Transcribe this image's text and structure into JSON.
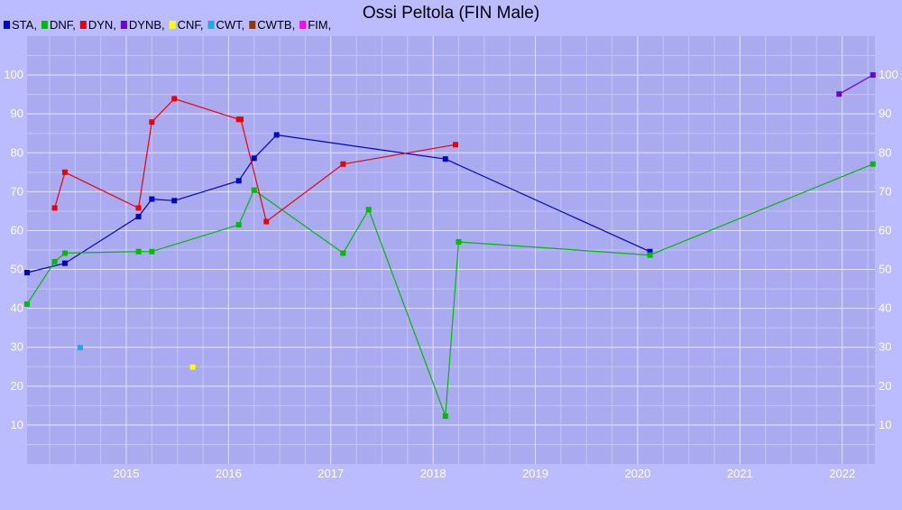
{
  "chart_data": {
    "type": "line",
    "title": "Ossi Peltola (FIN Male)",
    "xlabel": "",
    "ylabel": "",
    "xlim": [
      2014.03,
      2022.32
    ],
    "ylim": [
      0,
      110
    ],
    "y_ticks": [
      10,
      20,
      30,
      40,
      50,
      60,
      70,
      80,
      90,
      100
    ],
    "x_ticks": [
      "2015",
      "2016",
      "2017",
      "2018",
      "2019",
      "2020",
      "2021",
      "2022"
    ],
    "grid": true,
    "legend_position": "top-left",
    "legend": [
      {
        "label": "STA,",
        "color": "#0000cc"
      },
      {
        "label": "DNF,",
        "color": "#00bb00"
      },
      {
        "label": "DYN,",
        "color": "#ee0000"
      },
      {
        "label": "DYNB,",
        "color": "#6600dd"
      },
      {
        "label": "CNF,",
        "color": "#ffff00"
      },
      {
        "label": "CWT,",
        "color": "#22aadd"
      },
      {
        "label": "CWTB,",
        "color": "#993300"
      },
      {
        "label": "FIM,",
        "color": "#ff00ff"
      }
    ],
    "series": [
      {
        "name": "STA",
        "color": "#0000cc",
        "points": [
          [
            2014.03,
            49.2
          ],
          [
            2014.4,
            51.6
          ],
          [
            2015.12,
            63.6
          ],
          [
            2015.25,
            68.1
          ],
          [
            2015.47,
            67.7
          ],
          [
            2016.1,
            72.8
          ],
          [
            2016.25,
            78.6
          ],
          [
            2016.47,
            84.6
          ],
          [
            2018.12,
            78.4
          ],
          [
            2020.12,
            54.6
          ]
        ]
      },
      {
        "name": "DNF",
        "color": "#00bb00",
        "points": [
          [
            2014.03,
            41.1
          ],
          [
            2014.3,
            52.0
          ],
          [
            2014.4,
            54.2
          ],
          [
            2015.12,
            54.6
          ],
          [
            2015.25,
            54.6
          ],
          [
            2016.1,
            61.5
          ],
          [
            2016.25,
            70.4
          ],
          [
            2017.12,
            54.2
          ],
          [
            2017.37,
            65.4
          ],
          [
            2018.12,
            12.3
          ],
          [
            2018.25,
            57.1
          ],
          [
            2020.12,
            53.7
          ],
          [
            2022.3,
            77.1
          ]
        ]
      },
      {
        "name": "DYN",
        "color": "#ee0000",
        "points": [
          [
            2014.3,
            65.8
          ],
          [
            2014.4,
            75.0
          ],
          [
            2015.12,
            65.8
          ],
          [
            2015.25,
            87.9
          ],
          [
            2015.47,
            93.9
          ],
          [
            2016.1,
            88.6
          ],
          [
            2016.12,
            88.6
          ],
          [
            2016.37,
            62.3
          ],
          [
            2017.12,
            77.1
          ],
          [
            2018.22,
            82.1
          ]
        ]
      },
      {
        "name": "DYNB",
        "color": "#6600dd",
        "points": [
          [
            2021.97,
            95.1
          ],
          [
            2022.3,
            100.0
          ]
        ]
      },
      {
        "name": "CNF",
        "color": "#ffff00",
        "points": [
          [
            2015.65,
            24.9
          ]
        ]
      },
      {
        "name": "CWT",
        "color": "#22aadd",
        "points": [
          [
            2014.55,
            29.9
          ]
        ]
      },
      {
        "name": "CWTB",
        "color": "#993300",
        "points": []
      },
      {
        "name": "FIM",
        "color": "#ff00ff",
        "points": []
      }
    ]
  }
}
